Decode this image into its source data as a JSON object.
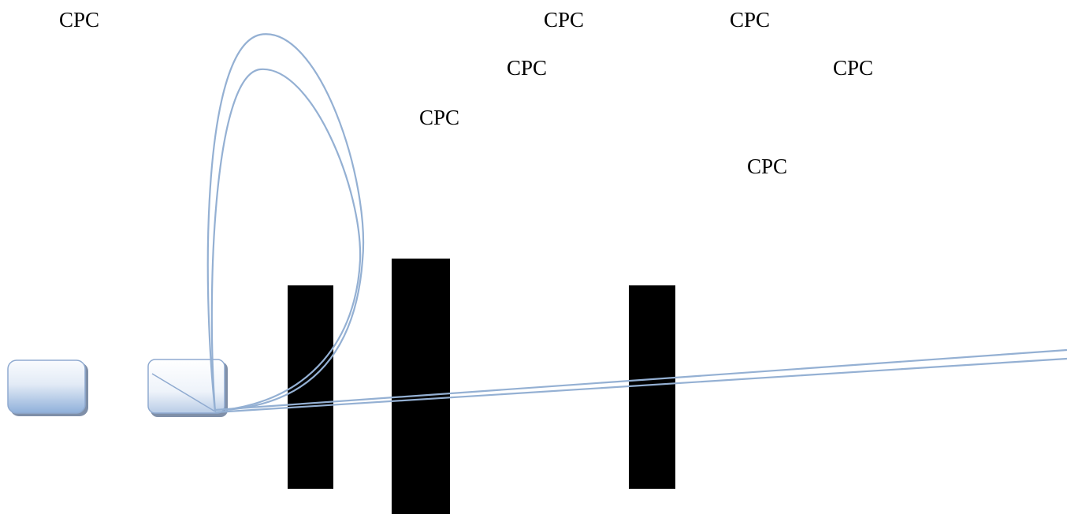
{
  "labels": [
    "CPC",
    "CPC",
    "CPC",
    "CPC",
    "CPC",
    "CPC",
    "CPC"
  ],
  "colors": {
    "beam": "#94b0d3",
    "block": "#000000",
    "box_top": "#f7f9fc",
    "box_bottom": "#95b4dc",
    "box_border": "#8faad0",
    "box_shadow": "#7f8fa8",
    "background": "#ffffff"
  }
}
